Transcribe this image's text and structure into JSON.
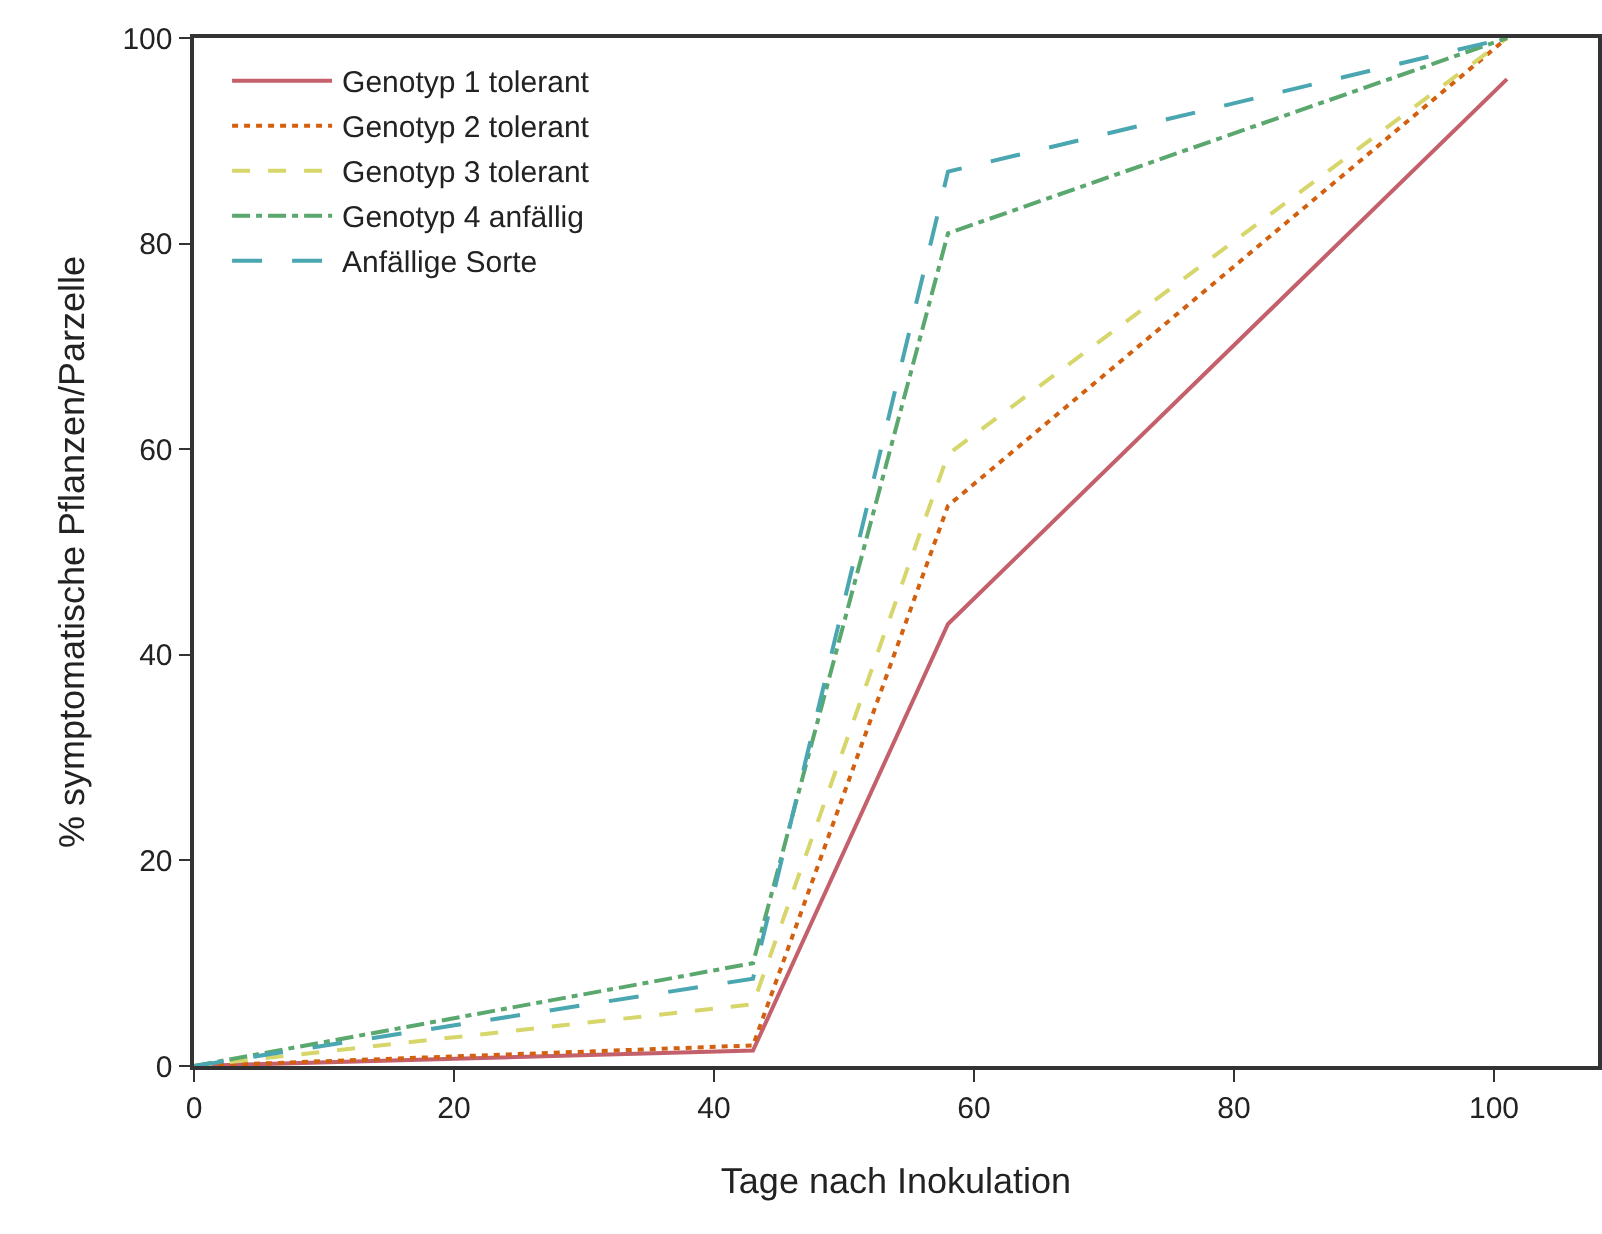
{
  "chart_data": {
    "type": "line",
    "xlabel": "Tage nach Inokulation",
    "ylabel": "% symptomatische Pflanzen/Parzelle",
    "x": [
      0,
      43,
      58,
      101
    ],
    "series": [
      {
        "name": "Genotyp 1 tolerant",
        "color": "#c4606c",
        "line_style": "solid",
        "values": [
          0,
          1.5,
          43,
          96
        ]
      },
      {
        "name": "Genotyp 2 tolerant",
        "color": "#d2600e",
        "line_style": "dotted",
        "values": [
          0,
          2,
          54.5,
          100
        ]
      },
      {
        "name": "Genotyp 3 tolerant",
        "color": "#d6d66a",
        "line_style": "dashed",
        "values": [
          0,
          6,
          59.5,
          100
        ]
      },
      {
        "name": "Genotyp 4 anfällig",
        "color": "#5aa86e",
        "line_style": "dashdot",
        "values": [
          0,
          10,
          81,
          100
        ]
      },
      {
        "name": "Anfällige Sorte",
        "color": "#4aa6b0",
        "line_style": "longdash",
        "values": [
          0,
          8.5,
          87,
          100
        ]
      }
    ],
    "xlim": [
      0,
      108
    ],
    "xticks": [
      0,
      20,
      40,
      60,
      80,
      100
    ],
    "ylim": [
      0,
      100
    ],
    "yticks": [
      0,
      20,
      40,
      60,
      80,
      100
    ],
    "grid": false,
    "legend": "top left",
    "marker": "none"
  }
}
